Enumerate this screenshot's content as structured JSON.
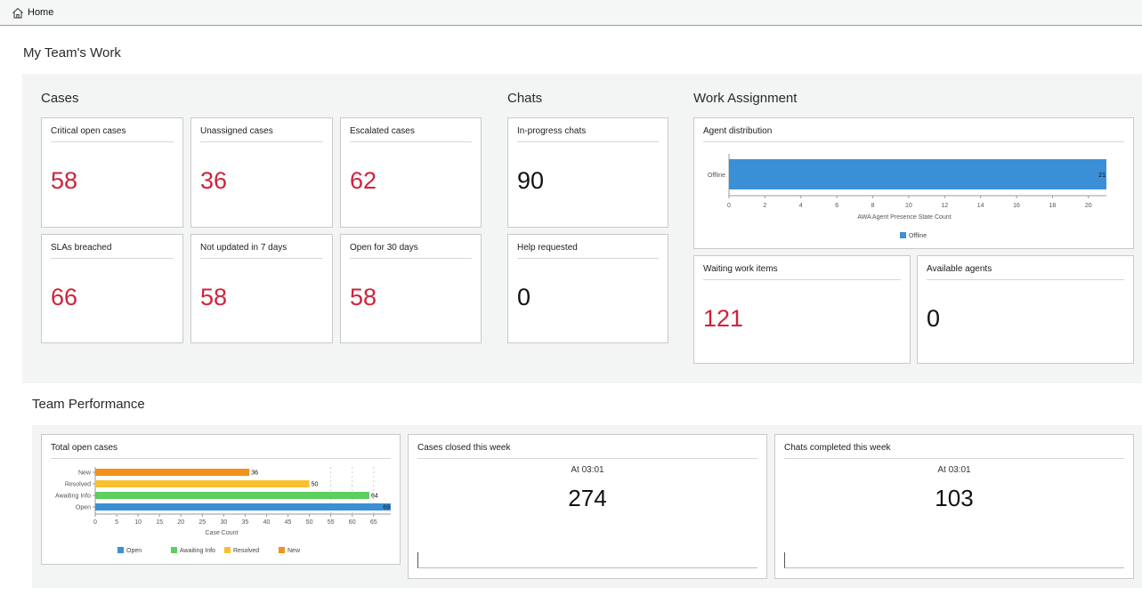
{
  "topbar": {
    "home_label": "Home"
  },
  "page_title": "My Team's Work",
  "sections": {
    "cases": "Cases",
    "chats": "Chats",
    "work_assignment": "Work Assignment",
    "team_performance": "Team Performance"
  },
  "cases": [
    {
      "title": "Critical open cases",
      "value": "58"
    },
    {
      "title": "Unassigned cases",
      "value": "36"
    },
    {
      "title": "Escalated cases",
      "value": "62"
    },
    {
      "title": "SLAs breached",
      "value": "66"
    },
    {
      "title": "Not updated in 7 days",
      "value": "58"
    },
    {
      "title": "Open for 30 days",
      "value": "58"
    }
  ],
  "chats": [
    {
      "title": "In-progress chats",
      "value": "90"
    },
    {
      "title": "Help requested",
      "value": "0"
    }
  ],
  "work_assignment": {
    "agent_distribution_title": "Agent distribution",
    "waiting_title": "Waiting work items",
    "waiting_value": "121",
    "available_title": "Available agents",
    "available_value": "0"
  },
  "performance": {
    "total_open_title": "Total open cases",
    "closed_title": "Cases closed this week",
    "closed_at": "At  03:01",
    "closed_value": "274",
    "chats_title": "Chats completed this week",
    "chats_at": "At  03:01",
    "chats_value": "103"
  },
  "colors": {
    "critical": "#d0223c",
    "blue": "#3b8fd6",
    "green": "#5ccf5c",
    "yellow": "#f6c02f",
    "orange": "#f2921c"
  },
  "chart_data": [
    {
      "type": "bar",
      "orientation": "horizontal",
      "categories": [
        "Offline"
      ],
      "series": [
        {
          "name": "Offline",
          "values": [
            21
          ],
          "color": "#3b8fd6"
        }
      ],
      "xlabel": "AWA Agent Presence State Count",
      "xlim": [
        0,
        21
      ],
      "xticks": [
        0,
        2,
        4,
        6,
        8,
        10,
        12,
        14,
        16,
        18,
        20
      ],
      "legend": "bottom"
    },
    {
      "type": "bar",
      "orientation": "horizontal",
      "categories": [
        "New",
        "Resolved",
        "Awaiting Info",
        "Open"
      ],
      "values": [
        36,
        50,
        64,
        69
      ],
      "colors": [
        "#f2921c",
        "#f6c02f",
        "#5ccf5c",
        "#3b8fd6"
      ],
      "xlabel": "Case Count",
      "xlim": [
        0,
        69
      ],
      "xticks": [
        0,
        5,
        10,
        15,
        20,
        25,
        30,
        35,
        40,
        45,
        50,
        55,
        60,
        65
      ],
      "legend_items": [
        "Open",
        "Awaiting Info",
        "Resolved",
        "New"
      ],
      "legend_colors": [
        "#3b8fd6",
        "#5ccf5c",
        "#f6c02f",
        "#f2921c"
      ],
      "legend": "bottom"
    }
  ]
}
